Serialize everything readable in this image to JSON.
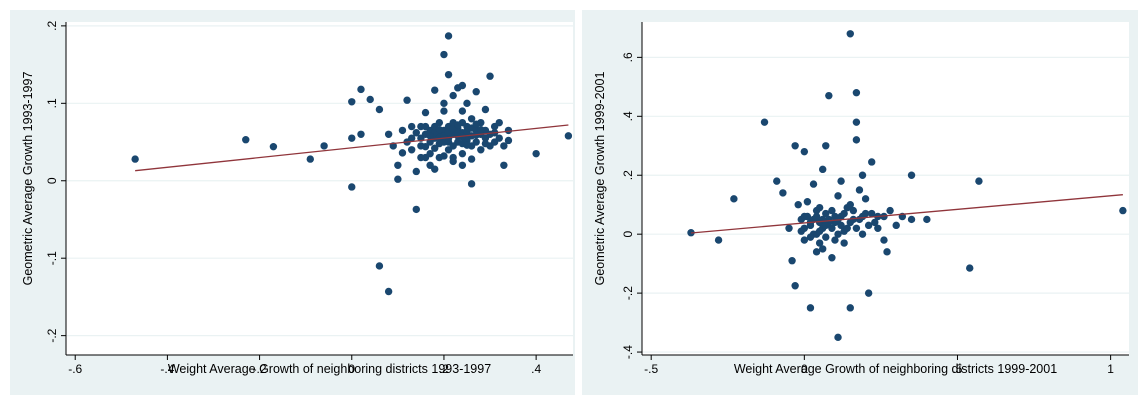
{
  "chart_data": [
    {
      "type": "scatter",
      "xlabel": "Weight Average Growth of neighboring districts 1993-1997",
      "ylabel": "Geometric Average Growth 1993-1997",
      "xlim": [
        -0.62,
        0.48
      ],
      "ylim": [
        -0.225,
        0.205
      ],
      "x_ticks": [
        -0.6,
        -0.4,
        -0.2,
        0,
        0.2,
        0.4
      ],
      "x_tick_labels": [
        "-.6",
        "-.4",
        "-.2",
        "0",
        ".2",
        ".4"
      ],
      "y_ticks": [
        -0.2,
        -0.1,
        0,
        0.1,
        0.2
      ],
      "y_tick_labels": [
        "-.2",
        "-.1",
        "0",
        ".1",
        ".2"
      ],
      "grid": true,
      "colors": {
        "points": "#1a476f",
        "fit_line": "#90353b",
        "plot_bg": "#ffffff",
        "panel_bg": "#eaf2f3",
        "grid": "#eaf2f3"
      },
      "fit_line": [
        [
          -0.47,
          0.013
        ],
        [
          0.47,
          0.072
        ]
      ],
      "points": [
        [
          -0.47,
          0.028
        ],
        [
          -0.23,
          0.053
        ],
        [
          -0.17,
          0.044
        ],
        [
          -0.09,
          0.028
        ],
        [
          -0.06,
          0.045
        ],
        [
          0.0,
          -0.008
        ],
        [
          0.0,
          0.102
        ],
        [
          0.0,
          0.055
        ],
        [
          0.02,
          0.06
        ],
        [
          0.02,
          0.118
        ],
        [
          0.04,
          0.105
        ],
        [
          0.06,
          0.092
        ],
        [
          0.06,
          -0.11
        ],
        [
          0.08,
          -0.143
        ],
        [
          0.08,
          0.06
        ],
        [
          0.09,
          0.045
        ],
        [
          0.1,
          0.02
        ],
        [
          0.1,
          0.002
        ],
        [
          0.11,
          0.036
        ],
        [
          0.11,
          0.065
        ],
        [
          0.12,
          0.05
        ],
        [
          0.12,
          0.104
        ],
        [
          0.13,
          0.07
        ],
        [
          0.13,
          0.04
        ],
        [
          0.14,
          -0.037
        ],
        [
          0.14,
          0.012
        ],
        [
          0.15,
          0.055
        ],
        [
          0.15,
          0.07
        ],
        [
          0.15,
          0.03
        ],
        [
          0.16,
          0.06
        ],
        [
          0.16,
          0.044
        ],
        [
          0.16,
          0.088
        ],
        [
          0.17,
          0.02
        ],
        [
          0.17,
          0.05
        ],
        [
          0.17,
          0.065
        ],
        [
          0.17,
          0.035
        ],
        [
          0.18,
          0.07
        ],
        [
          0.18,
          0.055
        ],
        [
          0.18,
          0.042
        ],
        [
          0.18,
          0.117
        ],
        [
          0.19,
          0.06
        ],
        [
          0.19,
          0.075
        ],
        [
          0.19,
          0.03
        ],
        [
          0.19,
          0.048
        ],
        [
          0.2,
          0.065
        ],
        [
          0.2,
          0.05
        ],
        [
          0.2,
          0.09
        ],
        [
          0.2,
          0.1
        ],
        [
          0.2,
          0.163
        ],
        [
          0.21,
          0.187
        ],
        [
          0.21,
          0.055
        ],
        [
          0.21,
          0.07
        ],
        [
          0.21,
          0.04
        ],
        [
          0.21,
          0.137
        ],
        [
          0.22,
          0.06
        ],
        [
          0.22,
          0.045
        ],
        [
          0.22,
          0.075
        ],
        [
          0.22,
          0.11
        ],
        [
          0.22,
          0.03
        ],
        [
          0.23,
          0.058
        ],
        [
          0.23,
          0.068
        ],
        [
          0.23,
          0.05
        ],
        [
          0.23,
          0.12
        ],
        [
          0.24,
          0.062
        ],
        [
          0.24,
          0.048
        ],
        [
          0.24,
          0.075
        ],
        [
          0.24,
          0.09
        ],
        [
          0.24,
          0.035
        ],
        [
          0.24,
          0.123
        ],
        [
          0.25,
          0.06
        ],
        [
          0.25,
          0.052
        ],
        [
          0.25,
          0.07
        ],
        [
          0.25,
          0.1
        ],
        [
          0.26,
          0.058
        ],
        [
          0.26,
          0.045
        ],
        [
          0.26,
          0.08
        ],
        [
          0.26,
          -0.004
        ],
        [
          0.27,
          0.065
        ],
        [
          0.27,
          0.05
        ],
        [
          0.27,
          0.115
        ],
        [
          0.28,
          0.06
        ],
        [
          0.28,
          0.04
        ],
        [
          0.28,
          0.075
        ],
        [
          0.29,
          0.055
        ],
        [
          0.29,
          0.065
        ],
        [
          0.29,
          0.092
        ],
        [
          0.3,
          0.135
        ],
        [
          0.3,
          0.045
        ],
        [
          0.3,
          0.06
        ],
        [
          0.31,
          0.05
        ],
        [
          0.31,
          0.07
        ],
        [
          0.32,
          0.055
        ],
        [
          0.32,
          0.075
        ],
        [
          0.33,
          0.045
        ],
        [
          0.33,
          0.02
        ],
        [
          0.34,
          0.065
        ],
        [
          0.34,
          0.052
        ],
        [
          0.4,
          0.035
        ],
        [
          0.47,
          0.058
        ],
        [
          0.13,
          0.055
        ],
        [
          0.14,
          0.062
        ],
        [
          0.16,
          0.07
        ],
        [
          0.18,
          0.062
        ],
        [
          0.19,
          0.056
        ],
        [
          0.2,
          0.058
        ],
        [
          0.21,
          0.063
        ],
        [
          0.22,
          0.067
        ],
        [
          0.23,
          0.061
        ],
        [
          0.24,
          0.057
        ],
        [
          0.25,
          0.064
        ],
        [
          0.26,
          0.068
        ],
        [
          0.27,
          0.059
        ],
        [
          0.28,
          0.066
        ],
        [
          0.15,
          0.045
        ],
        [
          0.17,
          0.058
        ],
        [
          0.19,
          0.066
        ],
        [
          0.21,
          0.05
        ],
        [
          0.23,
          0.072
        ],
        [
          0.25,
          0.046
        ],
        [
          0.27,
          0.073
        ],
        [
          0.29,
          0.048
        ],
        [
          0.31,
          0.062
        ],
        [
          0.2,
          0.032
        ],
        [
          0.22,
          0.025
        ],
        [
          0.24,
          0.02
        ],
        [
          0.26,
          0.028
        ],
        [
          0.18,
          0.015
        ],
        [
          0.16,
          0.03
        ]
      ]
    },
    {
      "type": "scatter",
      "xlabel": "Weight Average Growth of neighboring districts 1999-2001",
      "ylabel": "Geometric Average Growth 1999-2001",
      "xlim": [
        -0.53,
        1.06
      ],
      "ylim": [
        -0.41,
        0.72
      ],
      "x_ticks": [
        -0.5,
        0,
        0.5,
        1
      ],
      "x_tick_labels": [
        "-.5",
        "0",
        ".5",
        "1"
      ],
      "y_ticks": [
        -0.4,
        -0.2,
        0,
        0.2,
        0.4,
        0.6
      ],
      "y_tick_labels": [
        "-.4",
        "-.2",
        "0",
        ".2",
        ".4",
        ".6"
      ],
      "grid": true,
      "colors": {
        "points": "#1a476f",
        "fit_line": "#90353b",
        "plot_bg": "#ffffff",
        "panel_bg": "#eaf2f3",
        "grid": "#eaf2f3"
      },
      "fit_line": [
        [
          -0.37,
          0.004
        ],
        [
          1.04,
          0.134
        ]
      ],
      "points": [
        [
          -0.37,
          0.005
        ],
        [
          -0.28,
          -0.02
        ],
        [
          -0.23,
          0.12
        ],
        [
          -0.13,
          0.38
        ],
        [
          -0.09,
          0.18
        ],
        [
          -0.07,
          0.14
        ],
        [
          -0.04,
          -0.09
        ],
        [
          -0.03,
          0.3
        ],
        [
          -0.03,
          -0.175
        ],
        [
          -0.02,
          0.1
        ],
        [
          -0.01,
          0.05
        ],
        [
          0.0,
          0.28
        ],
        [
          0.0,
          0.02
        ],
        [
          0.0,
          0.06
        ],
        [
          0.01,
          0.11
        ],
        [
          0.02,
          -0.25
        ],
        [
          0.02,
          0.03
        ],
        [
          0.03,
          0.05
        ],
        [
          0.03,
          0.17
        ],
        [
          0.04,
          0.0
        ],
        [
          0.04,
          0.08
        ],
        [
          0.05,
          0.04
        ],
        [
          0.05,
          -0.03
        ],
        [
          0.06,
          0.02
        ],
        [
          0.06,
          0.22
        ],
        [
          0.07,
          0.07
        ],
        [
          0.07,
          0.3
        ],
        [
          0.08,
          0.47
        ],
        [
          0.08,
          0.05
        ],
        [
          0.09,
          -0.08
        ],
        [
          0.1,
          -0.02
        ],
        [
          0.1,
          0.04
        ],
        [
          0.11,
          -0.35
        ],
        [
          0.11,
          0.13
        ],
        [
          0.12,
          0.06
        ],
        [
          0.13,
          0.01
        ],
        [
          0.14,
          0.09
        ],
        [
          0.15,
          0.68
        ],
        [
          0.15,
          -0.25
        ],
        [
          0.16,
          0.05
        ],
        [
          0.17,
          0.48
        ],
        [
          0.17,
          0.38
        ],
        [
          0.17,
          0.32
        ],
        [
          0.18,
          0.15
        ],
        [
          0.19,
          0.2
        ],
        [
          0.2,
          0.07
        ],
        [
          0.21,
          -0.2
        ],
        [
          0.22,
          0.245
        ],
        [
          0.23,
          0.04
        ],
        [
          0.24,
          0.06
        ],
        [
          0.26,
          -0.02
        ],
        [
          0.27,
          -0.06
        ],
        [
          0.3,
          0.03
        ],
        [
          0.35,
          0.2
        ],
        [
          0.35,
          0.05
        ],
        [
          0.4,
          0.05
        ],
        [
          0.54,
          -0.115
        ],
        [
          0.57,
          0.18
        ],
        [
          1.04,
          0.08
        ],
        [
          0.02,
          0.04
        ],
        [
          0.03,
          0.0
        ],
        [
          0.04,
          0.06
        ],
        [
          0.05,
          0.01
        ],
        [
          0.06,
          0.05
        ],
        [
          0.07,
          -0.01
        ],
        [
          0.08,
          0.04
        ],
        [
          0.09,
          0.02
        ],
        [
          0.1,
          0.06
        ],
        [
          0.11,
          0.0
        ],
        [
          0.12,
          0.03
        ],
        [
          0.13,
          0.07
        ],
        [
          0.14,
          0.02
        ],
        [
          0.15,
          0.04
        ],
        [
          0.16,
          0.08
        ],
        [
          0.18,
          0.05
        ],
        [
          0.19,
          0.0
        ],
        [
          0.21,
          0.03
        ],
        [
          0.22,
          0.07
        ],
        [
          0.24,
          0.02
        ],
        [
          0.26,
          0.06
        ],
        [
          -0.01,
          0.01
        ],
        [
          0.0,
          -0.02
        ],
        [
          0.01,
          0.06
        ],
        [
          0.02,
          -0.01
        ],
        [
          0.05,
          0.09
        ],
        [
          0.07,
          0.03
        ],
        [
          0.09,
          0.08
        ],
        [
          0.11,
          0.05
        ],
        [
          0.13,
          -0.03
        ],
        [
          0.15,
          0.1
        ],
        [
          0.17,
          0.02
        ],
        [
          0.19,
          0.06
        ],
        [
          0.28,
          0.08
        ],
        [
          0.32,
          0.06
        ],
        [
          -0.05,
          0.02
        ],
        [
          0.06,
          -0.05
        ],
        [
          0.12,
          0.18
        ],
        [
          0.2,
          0.12
        ],
        [
          0.04,
          -0.06
        ]
      ]
    }
  ]
}
